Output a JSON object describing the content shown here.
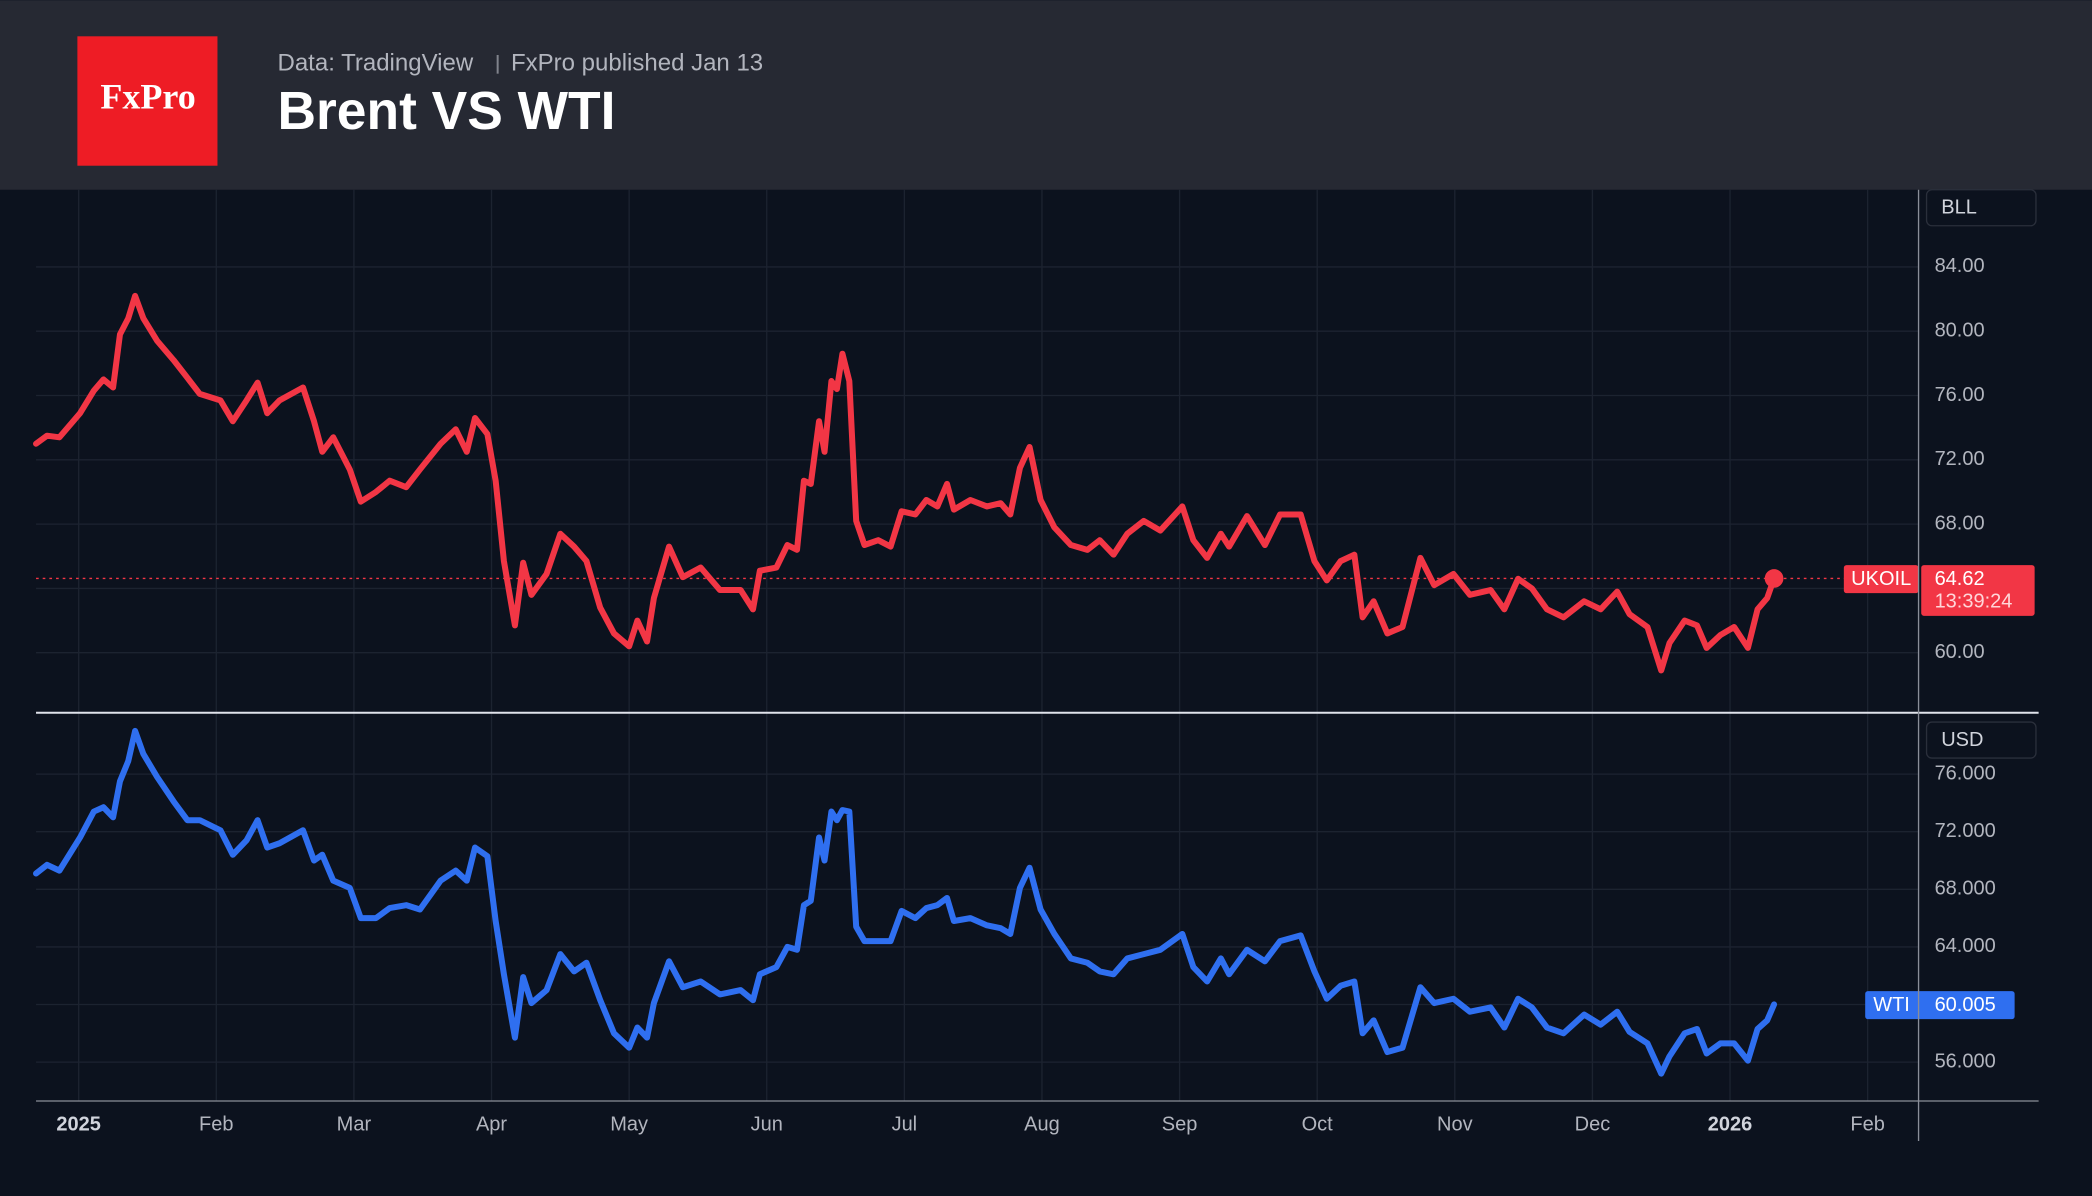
{
  "header": {
    "logo": "FxPro",
    "source": "Data: TradingView",
    "publisher": "FxPro published Jan 13"
  },
  "chart_data": {
    "type": "line",
    "title": "Brent VS WTI",
    "x": [
      -0.31,
      -0.23,
      -0.14,
      0.01,
      0.11,
      0.18,
      0.25,
      0.3,
      0.36,
      0.41,
      0.47,
      0.57,
      0.69,
      0.79,
      0.88,
      1.03,
      1.12,
      1.22,
      1.3,
      1.37,
      1.46,
      1.63,
      1.71,
      1.77,
      1.85,
      1.97,
      2.05,
      2.16,
      2.26,
      2.38,
      2.48,
      2.63,
      2.74,
      2.82,
      2.88,
      2.97,
      3.03,
      3.09,
      3.17,
      3.23,
      3.29,
      3.4,
      3.5,
      3.6,
      3.69,
      3.79,
      3.89,
      4.0,
      4.06,
      4.13,
      4.18,
      4.29,
      4.39,
      4.52,
      4.66,
      4.81,
      4.9,
      4.95,
      5.07,
      5.15,
      5.22,
      5.27,
      5.32,
      5.38,
      5.42,
      5.47,
      5.51,
      5.55,
      5.6,
      5.65,
      5.71,
      5.81,
      5.9,
      5.98,
      6.08,
      6.16,
      6.24,
      6.31,
      6.36,
      6.48,
      6.6,
      6.7,
      6.77,
      6.84,
      6.91,
      6.99,
      7.09,
      7.21,
      7.33,
      7.42,
      7.52,
      7.62,
      7.74,
      7.86,
      8.02,
      8.1,
      8.2,
      8.3,
      8.36,
      8.49,
      8.62,
      8.73,
      8.88,
      8.98,
      9.07,
      9.17,
      9.27,
      9.33,
      9.41,
      9.51,
      9.62,
      9.75,
      9.85,
      9.99,
      10.11,
      10.26,
      10.36,
      10.46,
      10.56,
      10.67,
      10.79,
      10.94,
      11.06,
      11.18,
      11.27,
      11.4,
      11.5,
      11.56,
      11.67,
      11.76,
      11.83,
      11.93,
      12.03,
      12.13,
      12.2,
      12.27,
      12.32
    ],
    "xlim": [
      -0.31,
      13.37
    ],
    "xticks": [
      {
        "value": 0,
        "label": "2025"
      },
      {
        "value": 1,
        "label": "Feb"
      },
      {
        "value": 2,
        "label": "Mar"
      },
      {
        "value": 3,
        "label": "Apr"
      },
      {
        "value": 4,
        "label": "May"
      },
      {
        "value": 5,
        "label": "Jun"
      },
      {
        "value": 6,
        "label": "Jul"
      },
      {
        "value": 7,
        "label": "Aug"
      },
      {
        "value": 8,
        "label": "Sep"
      },
      {
        "value": 9,
        "label": "Oct"
      },
      {
        "value": 10,
        "label": "Nov"
      },
      {
        "value": 11,
        "label": "Dec"
      },
      {
        "value": 12,
        "label": "2026"
      },
      {
        "value": 13,
        "label": "Feb"
      }
    ],
    "grid": true,
    "panels": [
      {
        "unit": "BLL",
        "ylim": [
          56.35,
          88.8
        ],
        "yticks": [
          {
            "value": 60,
            "label": "60.00"
          },
          {
            "value": 64,
            "label": "64.00"
          },
          {
            "value": 68,
            "label": "68.00"
          },
          {
            "value": 72,
            "label": "72.00"
          },
          {
            "value": 76,
            "label": "76.00"
          },
          {
            "value": 80,
            "label": "80.00"
          },
          {
            "value": 84,
            "label": "84.00"
          }
        ],
        "countdown": "13:39:24",
        "series": [
          {
            "name": "UKOIL",
            "color": "#f23645",
            "values": [
              73.0,
              73.5,
              73.4,
              74.9,
              76.3,
              77.0,
              76.5,
              79.8,
              80.8,
              82.2,
              80.8,
              79.4,
              78.2,
              77.1,
              76.1,
              75.7,
              74.4,
              75.7,
              76.8,
              74.9,
              75.7,
              76.5,
              74.4,
              72.5,
              73.4,
              71.4,
              69.4,
              70.0,
              70.7,
              70.3,
              71.4,
              73.0,
              73.9,
              72.5,
              74.6,
              73.6,
              70.7,
              65.7,
              61.7,
              65.6,
              63.6,
              64.9,
              67.4,
              66.6,
              65.7,
              62.8,
              61.2,
              60.4,
              62.0,
              60.7,
              63.4,
              66.6,
              64.7,
              65.3,
              63.9,
              63.9,
              62.7,
              65.1,
              65.3,
              66.7,
              66.4,
              70.7,
              70.5,
              74.4,
              72.5,
              76.9,
              76.4,
              78.6,
              76.9,
              68.2,
              66.7,
              67.0,
              66.6,
              68.8,
              68.6,
              69.5,
              69.1,
              70.5,
              68.9,
              69.5,
              69.1,
              69.3,
              68.6,
              71.5,
              72.8,
              69.5,
              67.8,
              66.7,
              66.4,
              67.0,
              66.1,
              67.4,
              68.2,
              67.6,
              69.1,
              67.0,
              65.9,
              67.4,
              66.6,
              68.5,
              66.7,
              68.6,
              68.6,
              65.7,
              64.5,
              65.7,
              66.1,
              62.2,
              63.2,
              61.2,
              61.6,
              65.9,
              64.2,
              64.9,
              63.6,
              63.9,
              62.7,
              64.6,
              64.0,
              62.7,
              62.2,
              63.2,
              62.7,
              63.8,
              62.4,
              61.6,
              58.9,
              60.6,
              62.0,
              61.7,
              60.3,
              61.1,
              61.6,
              60.3,
              62.7,
              63.4,
              64.62
            ]
          }
        ]
      },
      {
        "unit": "USD",
        "ylim": [
          53.3,
          80.17
        ],
        "yticks": [
          {
            "value": 56,
            "label": "56.000"
          },
          {
            "value": 60,
            "label": "60.000"
          },
          {
            "value": 64,
            "label": "64.000"
          },
          {
            "value": 68,
            "label": "68.000"
          },
          {
            "value": 72,
            "label": "72.000"
          },
          {
            "value": 76,
            "label": "76.000"
          }
        ],
        "series": [
          {
            "name": "WTI",
            "color": "#2f6ff0",
            "values": [
              69.1,
              69.7,
              69.3,
              71.6,
              73.4,
              73.7,
              73.0,
              75.5,
              76.9,
              79.0,
              77.4,
              75.8,
              74.1,
              72.8,
              72.8,
              72.1,
              70.4,
              71.4,
              72.8,
              70.9,
              71.2,
              72.1,
              70.0,
              70.4,
              68.6,
              68.1,
              66.0,
              66.0,
              66.7,
              66.9,
              66.6,
              68.6,
              69.3,
              68.6,
              70.9,
              70.3,
              65.8,
              62.1,
              57.7,
              61.9,
              60.1,
              61.0,
              63.5,
              62.3,
              62.9,
              60.3,
              58.0,
              57.0,
              58.4,
              57.7,
              60.1,
              63.0,
              61.2,
              61.6,
              60.7,
              61.0,
              60.3,
              62.1,
              62.6,
              64.0,
              63.8,
              66.9,
              67.2,
              71.6,
              70.0,
              73.4,
              72.8,
              73.5,
              73.4,
              65.4,
              64.4,
              64.4,
              64.4,
              66.5,
              66.0,
              66.7,
              66.9,
              67.4,
              65.8,
              66.0,
              65.5,
              65.3,
              64.9,
              68.1,
              69.5,
              66.6,
              64.9,
              63.2,
              62.9,
              62.3,
              62.1,
              63.2,
              63.5,
              63.8,
              64.9,
              62.6,
              61.6,
              63.2,
              62.1,
              63.8,
              63.0,
              64.4,
              64.8,
              62.3,
              60.4,
              61.3,
              61.6,
              58.0,
              58.9,
              56.7,
              57.0,
              61.2,
              60.1,
              60.4,
              59.5,
              59.8,
              58.4,
              60.4,
              59.8,
              58.4,
              58.0,
              59.3,
              58.6,
              59.5,
              58.1,
              57.3,
              55.2,
              56.4,
              58.0,
              58.3,
              56.6,
              57.3,
              57.3,
              56.1,
              58.3,
              58.9,
              60.005
            ]
          }
        ]
      }
    ]
  }
}
